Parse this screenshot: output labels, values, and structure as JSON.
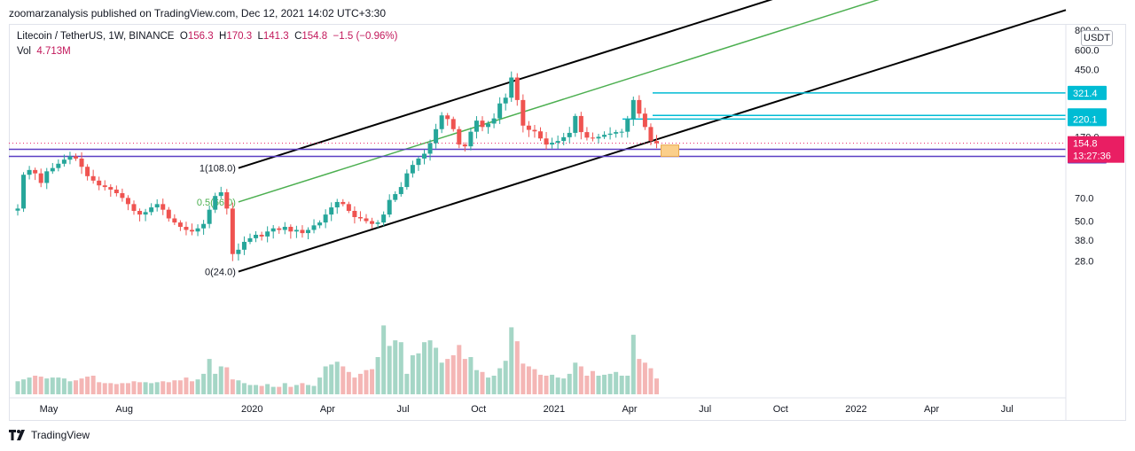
{
  "header": {
    "published": "zoomarzanalysis published on TradingView.com, Dec 12, 2021 14:02 UTC+3:30"
  },
  "legend": {
    "symbol": "Litecoin / TetherUS, 1W, BINANCE",
    "o_label": "O",
    "o": "156.3",
    "h_label": "H",
    "h": "170.3",
    "l_label": "L",
    "l": "141.3",
    "c_label": "C",
    "c": "154.8",
    "change": "−1.5 (−0.96%)",
    "vol_label": "Vol",
    "vol": "4.713M"
  },
  "currency_button": "USDT",
  "footer": {
    "brand": "TradingView"
  },
  "colors": {
    "up": "#26a69a",
    "down": "#ef5350",
    "up_vol": "#a5d6c6",
    "down_vol": "#f4b6b5",
    "channel": "#000000",
    "fib_mid": "#4caf50",
    "cyan": "#00bcd4",
    "purple": "#5b3fc4",
    "price_tag": "#e91e63",
    "target_box": "#fbcf8b"
  },
  "chart_data": {
    "type": "candlestick",
    "scale": "log",
    "price_axis": {
      "labels": [
        "800.0",
        "600.0",
        "450.0",
        "170.0",
        "70.0",
        "50.0",
        "38.0",
        "28.0"
      ],
      "values": [
        800,
        600,
        450,
        170,
        70,
        50,
        38,
        28
      ]
    },
    "time_axis": [
      {
        "label": "May",
        "t": 0
      },
      {
        "label": "Aug",
        "t": 13
      },
      {
        "label": "2020",
        "t": 35
      },
      {
        "label": "Apr",
        "t": 48
      },
      {
        "label": "Jul",
        "t": 61
      },
      {
        "label": "Oct",
        "t": 74
      },
      {
        "label": "2021",
        "t": 87
      },
      {
        "label": "Apr",
        "t": 100
      },
      {
        "label": "Jul",
        "t": 113
      },
      {
        "label": "Oct",
        "t": 126
      },
      {
        "label": "2022",
        "t": 139
      },
      {
        "label": "Apr",
        "t": 152
      },
      {
        "label": "Jul",
        "t": 165
      }
    ],
    "closes": [
      60,
      98,
      105,
      100,
      87,
      103,
      108,
      115,
      122,
      128,
      124,
      110,
      96,
      90,
      84,
      82,
      79,
      75,
      70,
      64,
      58,
      55,
      57,
      61,
      64,
      59,
      52,
      49,
      46,
      44,
      43,
      45,
      48,
      59,
      72,
      76,
      60,
      31,
      33,
      37,
      39,
      41,
      40,
      43,
      45,
      44,
      46,
      43,
      44,
      42,
      44,
      47,
      49,
      55,
      61,
      66,
      64,
      58,
      53,
      52,
      50,
      48,
      49,
      55,
      68,
      74,
      82,
      100,
      113,
      124,
      133,
      155,
      190,
      232,
      220,
      190,
      152,
      148,
      183,
      215,
      196,
      206,
      222,
      276,
      300,
      402,
      290,
      200,
      188,
      184,
      166,
      152,
      156,
      160,
      169,
      180,
      230,
      182,
      168,
      166,
      170,
      175,
      178,
      182,
      183,
      220,
      290,
      238,
      196,
      160,
      154.8
    ],
    "volume_relative": [
      0.14,
      0.16,
      0.18,
      0.2,
      0.19,
      0.17,
      0.18,
      0.18,
      0.17,
      0.14,
      0.15,
      0.17,
      0.19,
      0.2,
      0.13,
      0.12,
      0.12,
      0.11,
      0.12,
      0.12,
      0.14,
      0.13,
      0.13,
      0.12,
      0.13,
      0.14,
      0.13,
      0.15,
      0.15,
      0.18,
      0.14,
      0.16,
      0.22,
      0.38,
      0.22,
      0.3,
      0.29,
      0.16,
      0.15,
      0.12,
      0.1,
      0.1,
      0.09,
      0.11,
      0.08,
      0.08,
      0.12,
      0.08,
      0.1,
      0.12,
      0.1,
      0.09,
      0.18,
      0.3,
      0.32,
      0.35,
      0.3,
      0.24,
      0.18,
      0.22,
      0.26,
      0.27,
      0.4,
      0.74,
      0.52,
      0.58,
      0.56,
      0.22,
      0.42,
      0.44,
      0.56,
      0.58,
      0.5,
      0.34,
      0.38,
      0.42,
      0.53,
      0.38,
      0.4,
      0.26,
      0.24,
      0.18,
      0.2,
      0.28,
      0.36,
      0.72,
      0.57,
      0.33,
      0.3,
      0.27,
      0.21,
      0.2,
      0.21,
      0.18,
      0.17,
      0.22,
      0.34,
      0.3,
      0.2,
      0.25,
      0.2,
      0.21,
      0.22,
      0.24,
      0.2,
      0.2,
      0.64,
      0.38,
      0.34,
      0.28,
      0.17
    ],
    "levels": [
      {
        "price": 321.4,
        "label": "321.4",
        "color": "cyan"
      },
      {
        "price": 231.8,
        "label": "231.8",
        "color": "cyan"
      },
      {
        "price": 220.1,
        "label": "220.1",
        "color": "cyan"
      },
      {
        "price": 141.9,
        "label": "141.9",
        "color": "purple"
      },
      {
        "price": 128.0,
        "label": "128.0",
        "color": "purple"
      }
    ],
    "last_price": {
      "price": 154.8,
      "label": "154.8",
      "countdown": "13:27:36"
    },
    "channel": {
      "fib_labels": {
        "top": "1(108.0)",
        "mid": "0.5(66.0)",
        "bottom": "0(24.0)"
      },
      "anchor_t": 38,
      "anchor_top_price": 108.0,
      "anchor_mid_price": 66.0,
      "anchor_bottom_price": 24.0,
      "end_t": 141,
      "end_bottom_price": 374,
      "end_mid_price": 780
    }
  }
}
